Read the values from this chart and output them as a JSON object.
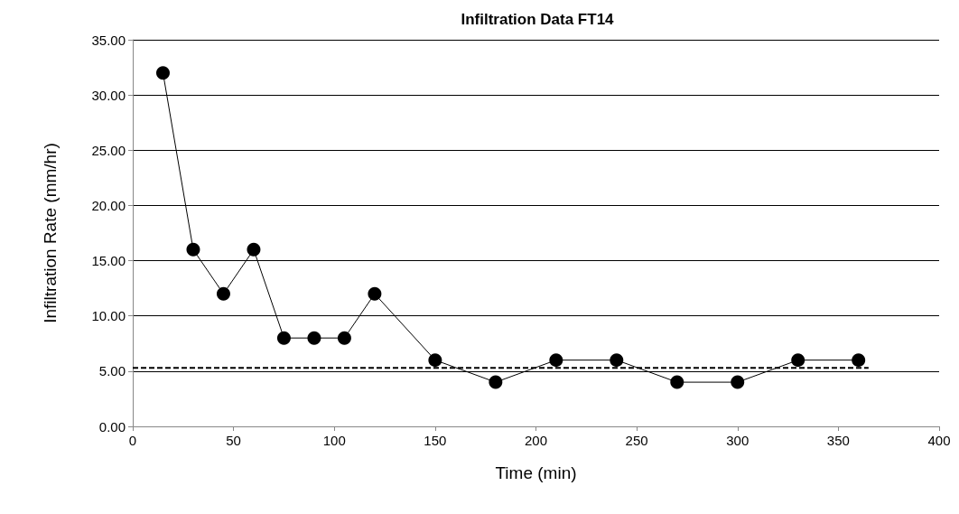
{
  "chart_data": {
    "type": "line",
    "title": "Infiltration Data FT14",
    "xlabel": "Time (min)",
    "ylabel": "Infiltration Rate (mm/hr)",
    "series": [
      {
        "color": "#000000",
        "marker": "circle",
        "line_style": "solid",
        "x": [
          15,
          30,
          45,
          60,
          75,
          90,
          105,
          120,
          150,
          180,
          210,
          240,
          270,
          300,
          330,
          360
        ],
        "values": [
          32,
          16,
          12,
          16,
          8,
          8,
          8,
          12,
          6,
          4,
          6,
          6,
          4,
          4,
          6,
          6
        ]
      },
      {
        "color": "#000000",
        "marker": "none",
        "line_style": "dashed",
        "x": [
          0,
          365
        ],
        "values": [
          5.3,
          5.3
        ]
      }
    ],
    "xlim": [
      0,
      400
    ],
    "xticks": [
      0,
      50,
      100,
      150,
      200,
      250,
      300,
      350,
      400
    ],
    "ylim": [
      0,
      35
    ],
    "yticks": [
      {
        "value": 0,
        "label": "0.00"
      },
      {
        "value": 5,
        "label": "5.00"
      },
      {
        "value": 10,
        "label": "10.00"
      },
      {
        "value": 15,
        "label": "15.00"
      },
      {
        "value": 20,
        "label": "20.00"
      },
      {
        "value": 25,
        "label": "25.00"
      },
      {
        "value": 30,
        "label": "30.00"
      },
      {
        "value": 35,
        "label": "35.00"
      }
    ],
    "grid": "y"
  }
}
